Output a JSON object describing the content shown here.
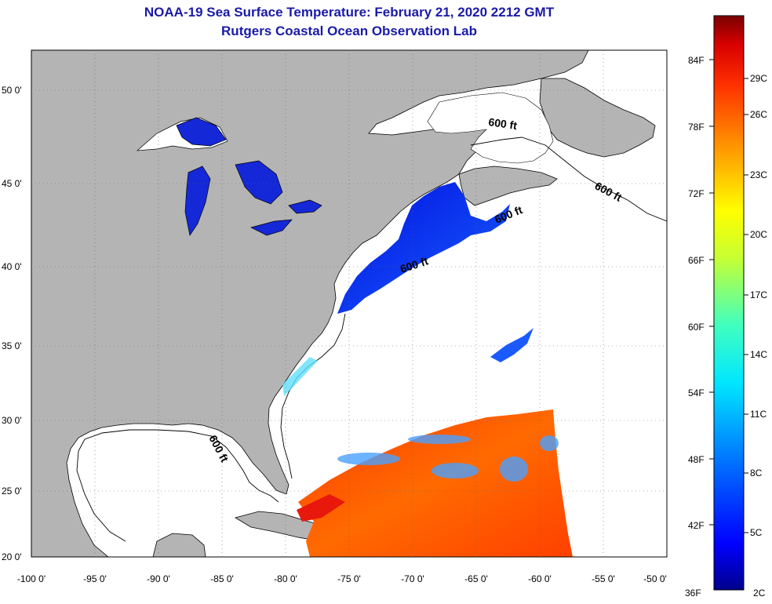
{
  "title": {
    "line1": "NOAA-19 Sea Surface Temperature:  February 21, 2020 2212 GMT",
    "line2": "Rutgers Coastal Ocean Observation Lab"
  },
  "axes": {
    "lon_labels": [
      "-100 0'",
      "-95 0'",
      "-90 0'",
      "-85 0'",
      "-80 0'",
      "-75 0'",
      "-70 0'",
      "-65 0'",
      "-60 0'",
      "-55 0'",
      "-50 0'"
    ],
    "lat_labels": [
      "50 0'",
      "45 0'",
      "40 0'",
      "35 0'",
      "30 0'",
      "25 0'",
      "20 0'"
    ]
  },
  "isobath_labels": [
    "600 ft",
    "600 ft",
    "600 ft",
    "600 ft",
    "600 ft"
  ],
  "colorbar": {
    "fahrenheit": [
      "84F",
      "78F",
      "72F",
      "66F",
      "60F",
      "54F",
      "48F",
      "42F",
      "36F"
    ],
    "celsius": [
      "29C",
      "26C",
      "23C",
      "20C",
      "17C",
      "14C",
      "11C",
      "8C",
      "5C",
      "2C"
    ]
  },
  "colors": {
    "land": "#b4b4b4",
    "water_cloud": "#ffffff",
    "title": "#1a1aa8"
  }
}
